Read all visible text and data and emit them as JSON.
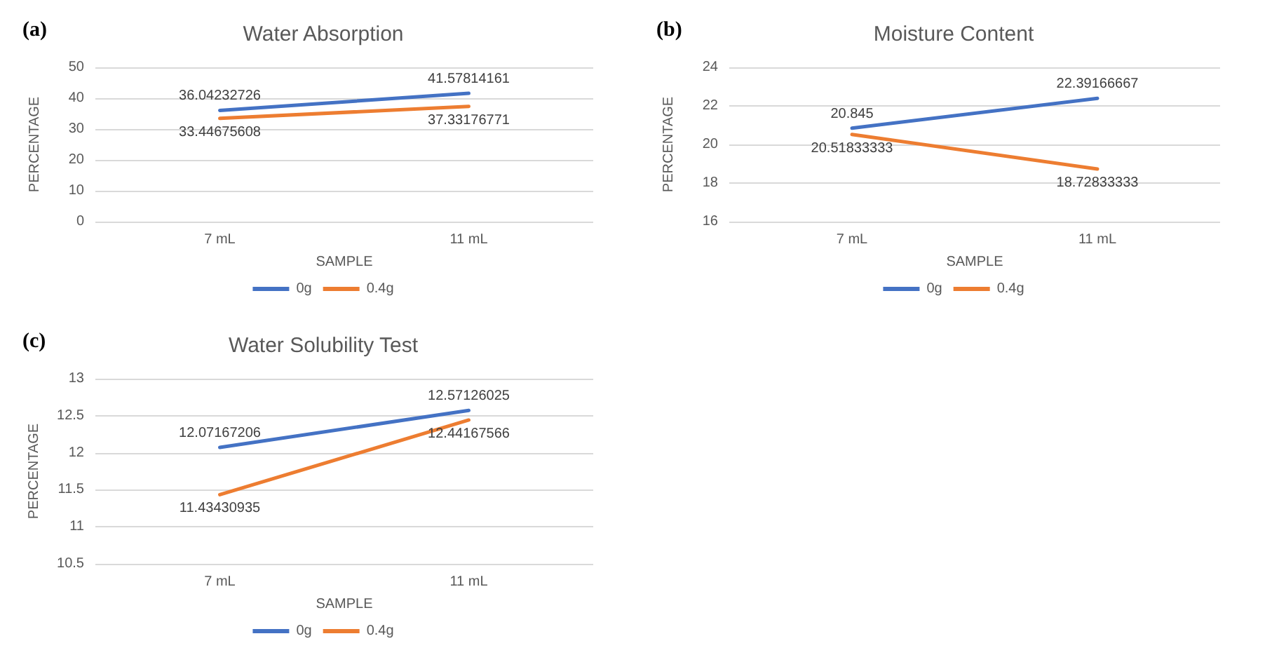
{
  "chart_data": [
    {
      "type": "line",
      "title": "Water Absorption",
      "xlabel": "SAMPLE",
      "ylabel": "PERCENTAGE",
      "annotations": [
        "(a)"
      ],
      "categories": [
        "7 mL",
        "11 mL"
      ],
      "series": [
        {
          "name": "0g",
          "color": "#4472c4",
          "values": [
            36.04232726,
            41.57814161
          ]
        },
        {
          "name": "0.4g",
          "color": "#ed7d31",
          "values": [
            33.44675608,
            37.33176771
          ]
        }
      ],
      "ylim": [
        0,
        50
      ],
      "yticks": [
        0,
        10,
        20,
        30,
        40,
        50
      ],
      "grid": "y",
      "legend": "bottom",
      "marker": "none",
      "line_style": "solid",
      "data_labels": true
    },
    {
      "type": "line",
      "title": "Moisture Content",
      "xlabel": "SAMPLE",
      "ylabel": "PERCENTAGE",
      "annotations": [
        "(b)"
      ],
      "categories": [
        "7 mL",
        "11 mL"
      ],
      "series": [
        {
          "name": "0g",
          "color": "#4472c4",
          "values": [
            20.845,
            22.39166667
          ]
        },
        {
          "name": "0.4g",
          "color": "#ed7d31",
          "values": [
            20.51833333,
            18.72833333
          ]
        }
      ],
      "ylim": [
        16,
        24
      ],
      "yticks": [
        16,
        18,
        20,
        22,
        24
      ],
      "grid": "y",
      "legend": "bottom",
      "marker": "none",
      "line_style": "solid",
      "data_labels": true
    },
    {
      "type": "line",
      "title": "Water Solubility Test",
      "xlabel": "SAMPLE",
      "ylabel": "PERCENTAGE",
      "annotations": [
        "(c)"
      ],
      "categories": [
        "7 mL",
        "11 mL"
      ],
      "series": [
        {
          "name": "0g",
          "color": "#4472c4",
          "values": [
            12.07167206,
            12.57126025
          ]
        },
        {
          "name": "0.4g",
          "color": "#ed7d31",
          "values": [
            11.43430935,
            12.44167566
          ]
        }
      ],
      "ylim": [
        10.5,
        13
      ],
      "yticks": [
        10.5,
        11,
        11.5,
        12,
        12.5,
        13
      ],
      "grid": "y",
      "legend": "bottom",
      "marker": "none",
      "line_style": "solid",
      "data_labels": true
    }
  ]
}
